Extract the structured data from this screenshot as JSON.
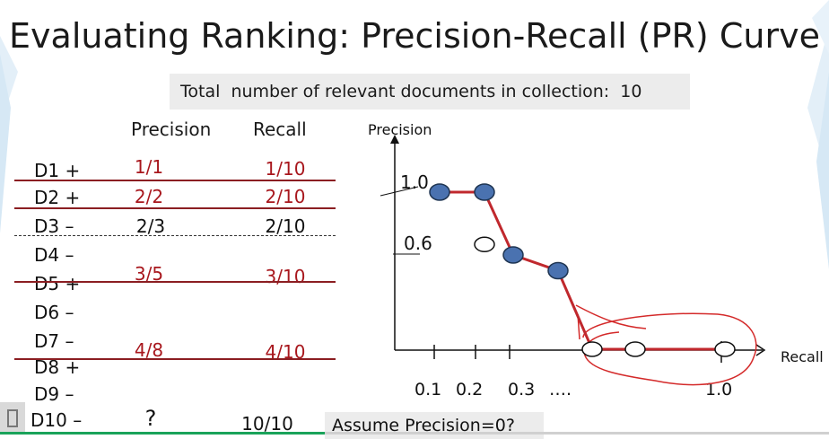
{
  "title": "Evaluating Ranking: Precision-Recall (PR) Curve",
  "banner": "Total  number of relevant documents in collection:  10",
  "table": {
    "headers": {
      "precision": "Precision",
      "recall": "Recall"
    },
    "rows": [
      {
        "doc": "D1 +",
        "precision": "1/1",
        "recall": "1/10",
        "relevant": true
      },
      {
        "doc": "D2 +",
        "precision": "2/2",
        "recall": "2/10",
        "relevant": true
      },
      {
        "doc": "D3 –",
        "precision": "2/3",
        "recall": "2/10",
        "relevant": false
      },
      {
        "doc": "D4 –",
        "precision": "",
        "recall": "",
        "relevant": false
      },
      {
        "doc": "D5 +",
        "precision": "3/5",
        "recall": "3/10",
        "relevant": true
      },
      {
        "doc": "D6 –",
        "precision": "",
        "recall": "",
        "relevant": false
      },
      {
        "doc": "D7 –",
        "precision": "",
        "recall": "",
        "relevant": false
      },
      {
        "doc": "D8 +",
        "precision": "4/8",
        "recall": "4/10",
        "relevant": true
      },
      {
        "doc": "D9 –",
        "precision": "",
        "recall": "",
        "relevant": false
      },
      {
        "doc": "D10 –",
        "precision": "?",
        "recall": "10/10",
        "relevant": false
      }
    ]
  },
  "note": "Assume Precision=0?",
  "chart_data": {
    "type": "scatter",
    "ylabel": "Precision",
    "xlabel": "Recall",
    "y_tick_labels": [
      "1.0",
      "0.6"
    ],
    "x_tick_labels": [
      "0.1",
      "0.2",
      "0.3",
      "….",
      "1.0"
    ],
    "filled_points": [
      {
        "x": 0.1,
        "y": 1.0
      },
      {
        "x": 0.2,
        "y": 1.0
      },
      {
        "x": 0.3,
        "y": 0.6
      },
      {
        "x": 0.4,
        "y": 0.5
      }
    ],
    "open_points": [
      {
        "x": 0.2,
        "y": 0.667
      },
      {
        "x": 0.5,
        "y": 0.0
      },
      {
        "x": 0.6,
        "y": 0.0
      },
      {
        "x": 1.0,
        "y": 0.0
      }
    ],
    "colors": {
      "curve": "#c0282d",
      "filled": "#4a72b0",
      "annotation": "#d42a2a"
    }
  }
}
